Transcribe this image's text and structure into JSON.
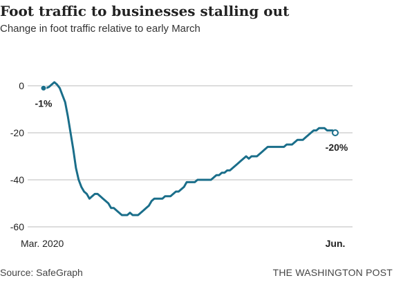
{
  "header": {
    "title": "Foot traffic to businesses stalling out",
    "subtitle": "Change in foot traffic relative to early March"
  },
  "footer": {
    "source": "Source: SafeGraph",
    "credit": "THE WASHINGTON POST"
  },
  "colors": {
    "line": "#1a6e8a",
    "grid": "#bbbbbb",
    "text": "#222222"
  },
  "chart_data": {
    "type": "line",
    "title": "Foot traffic to businesses stalling out",
    "subtitle": "Change in foot traffic relative to early March",
    "xlabel": "",
    "ylabel": "",
    "x_tick_labels": [
      "Mar. 2020",
      "Jun."
    ],
    "y_ticks": [
      0,
      -20,
      -40,
      -60
    ],
    "y_tick_labels": [
      "0",
      "-20",
      "-40",
      "-60"
    ],
    "ylim": [
      -62,
      2
    ],
    "grid": true,
    "legend": "none",
    "series": [
      {
        "values": [
          -1,
          -1,
          -0.5,
          0.5,
          1.5,
          0.5,
          -1,
          -4,
          -7,
          -13,
          -20,
          -27,
          -35,
          -40,
          -43,
          -45,
          -46,
          -48,
          -47,
          -46,
          -46,
          -47,
          -48,
          -49,
          -50,
          -52,
          -52,
          -53,
          -54,
          -55,
          -55,
          -55,
          -54,
          -55,
          -55,
          -55,
          -54,
          -53,
          -52,
          -51,
          -49,
          -48,
          -48,
          -48,
          -48,
          -47,
          -47,
          -47,
          -46,
          -45,
          -45,
          -44,
          -43,
          -41,
          -41,
          -41,
          -41,
          -40,
          -40,
          -40,
          -40,
          -40,
          -40,
          -39,
          -38,
          -38,
          -37,
          -37,
          -36,
          -36,
          -35,
          -34,
          -33,
          -32,
          -31,
          -30,
          -31,
          -30,
          -30,
          -30,
          -29,
          -28,
          -27,
          -26,
          -26,
          -26,
          -26,
          -26,
          -26,
          -26,
          -25,
          -25,
          -25,
          -24,
          -23,
          -23,
          -23,
          -22,
          -21,
          -20,
          -19,
          -19,
          -18,
          -18,
          -18,
          -19,
          -19,
          -19,
          -20
        ]
      }
    ],
    "annotations": [
      {
        "label": "-1%",
        "index": 0,
        "value": -1
      },
      {
        "label": "-20%",
        "index": 108,
        "value": -20
      }
    ]
  }
}
